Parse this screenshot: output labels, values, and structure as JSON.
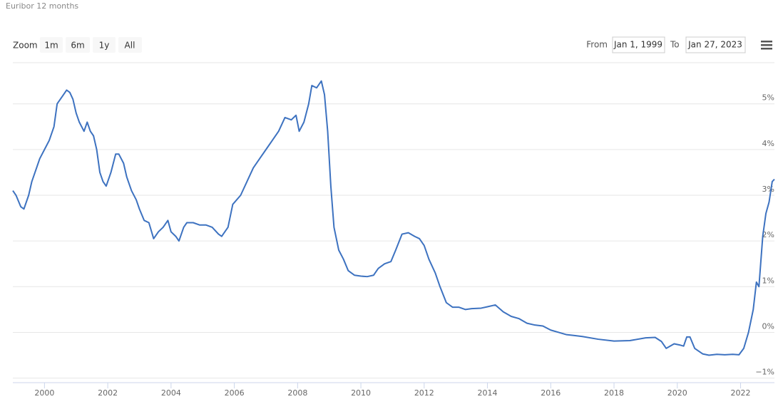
{
  "ui": {
    "zoom_label": "Zoom",
    "zoom_buttons": [
      "1m",
      "6m",
      "1y",
      "All"
    ],
    "from_label": "From",
    "from_date": "Jan 1, 1999",
    "to_label": "To",
    "to_date": "Jan 27, 2023"
  },
  "chart_data": {
    "type": "line",
    "title": "Euribor 12 months",
    "color": "#3d72c0",
    "grid": true,
    "y_axis_side": "right",
    "xlim": [
      1999.0,
      2023.07
    ],
    "xticks": [
      2000,
      2002,
      2004,
      2006,
      2008,
      2010,
      2012,
      2014,
      2016,
      2018,
      2020,
      2022
    ],
    "ylim": [
      -1.1,
      5.9
    ],
    "yticks": [
      {
        "value": -1,
        "label": "−1%"
      },
      {
        "value": 0,
        "label": "0%"
      },
      {
        "value": 1,
        "label": "1%"
      },
      {
        "value": 2,
        "label": "2%"
      },
      {
        "value": 3,
        "label": "3%"
      },
      {
        "value": 4,
        "label": "4%"
      },
      {
        "value": 5,
        "label": "5%"
      }
    ],
    "x": [
      1999.0,
      1999.1,
      1999.25,
      1999.35,
      1999.5,
      1999.6,
      1999.75,
      1999.85,
      2000.0,
      2000.15,
      2000.3,
      2000.4,
      2000.5,
      2000.6,
      2000.7,
      2000.8,
      2000.9,
      2001.0,
      2001.1,
      2001.25,
      2001.35,
      2001.45,
      2001.55,
      2001.65,
      2001.75,
      2001.85,
      2001.95,
      2002.1,
      2002.25,
      2002.35,
      2002.5,
      2002.6,
      2002.75,
      2002.9,
      2003.0,
      2003.15,
      2003.3,
      2003.45,
      2003.6,
      2003.75,
      2003.9,
      2004.0,
      2004.15,
      2004.25,
      2004.4,
      2004.5,
      2004.7,
      2004.9,
      2005.1,
      2005.3,
      2005.5,
      2005.6,
      2005.8,
      2005.95,
      2006.2,
      2006.4,
      2006.6,
      2006.8,
      2007.0,
      2007.2,
      2007.4,
      2007.6,
      2007.8,
      2007.95,
      2008.05,
      2008.2,
      2008.35,
      2008.45,
      2008.6,
      2008.75,
      2008.85,
      2008.95,
      2009.05,
      2009.15,
      2009.3,
      2009.45,
      2009.6,
      2009.8,
      2010.0,
      2010.2,
      2010.4,
      2010.55,
      2010.75,
      2010.95,
      2011.1,
      2011.3,
      2011.5,
      2011.7,
      2011.85,
      2012.0,
      2012.15,
      2012.35,
      2012.5,
      2012.7,
      2012.9,
      2013.1,
      2013.3,
      2013.5,
      2013.8,
      2014.0,
      2014.25,
      2014.5,
      2014.75,
      2015.0,
      2015.25,
      2015.5,
      2015.75,
      2016.0,
      2016.25,
      2016.5,
      2016.75,
      2017.0,
      2017.5,
      2018.0,
      2018.5,
      2019.0,
      2019.3,
      2019.5,
      2019.65,
      2019.9,
      2020.1,
      2020.2,
      2020.3,
      2020.4,
      2020.55,
      2020.8,
      2021.0,
      2021.25,
      2021.5,
      2021.75,
      2021.95,
      2022.1,
      2022.25,
      2022.4,
      2022.5,
      2022.58,
      2022.7,
      2022.8,
      2022.9,
      2023.0,
      2023.07
    ],
    "values": [
      3.1,
      3.0,
      2.75,
      2.7,
      3.0,
      3.3,
      3.6,
      3.8,
      4.0,
      4.2,
      4.5,
      5.0,
      5.1,
      5.2,
      5.3,
      5.25,
      5.1,
      4.8,
      4.6,
      4.4,
      4.6,
      4.4,
      4.3,
      4.0,
      3.5,
      3.3,
      3.2,
      3.5,
      3.9,
      3.9,
      3.7,
      3.4,
      3.1,
      2.9,
      2.7,
      2.45,
      2.4,
      2.05,
      2.2,
      2.3,
      2.45,
      2.2,
      2.1,
      2.0,
      2.3,
      2.4,
      2.4,
      2.35,
      2.35,
      2.3,
      2.15,
      2.1,
      2.3,
      2.8,
      3.0,
      3.3,
      3.6,
      3.8,
      4.0,
      4.2,
      4.4,
      4.7,
      4.65,
      4.75,
      4.4,
      4.6,
      5.0,
      5.4,
      5.35,
      5.5,
      5.2,
      4.4,
      3.2,
      2.3,
      1.8,
      1.6,
      1.35,
      1.25,
      1.23,
      1.22,
      1.25,
      1.4,
      1.5,
      1.55,
      1.8,
      2.15,
      2.18,
      2.1,
      2.05,
      1.9,
      1.6,
      1.3,
      1.0,
      0.65,
      0.55,
      0.55,
      0.5,
      0.52,
      0.53,
      0.56,
      0.6,
      0.45,
      0.35,
      0.3,
      0.2,
      0.16,
      0.14,
      0.05,
      0.0,
      -0.05,
      -0.07,
      -0.09,
      -0.15,
      -0.19,
      -0.18,
      -0.12,
      -0.11,
      -0.2,
      -0.35,
      -0.25,
      -0.28,
      -0.3,
      -0.1,
      -0.1,
      -0.35,
      -0.47,
      -0.5,
      -0.48,
      -0.49,
      -0.48,
      -0.49,
      -0.35,
      0.0,
      0.5,
      1.1,
      1.0,
      2.1,
      2.6,
      2.85,
      3.3,
      3.35
    ]
  }
}
